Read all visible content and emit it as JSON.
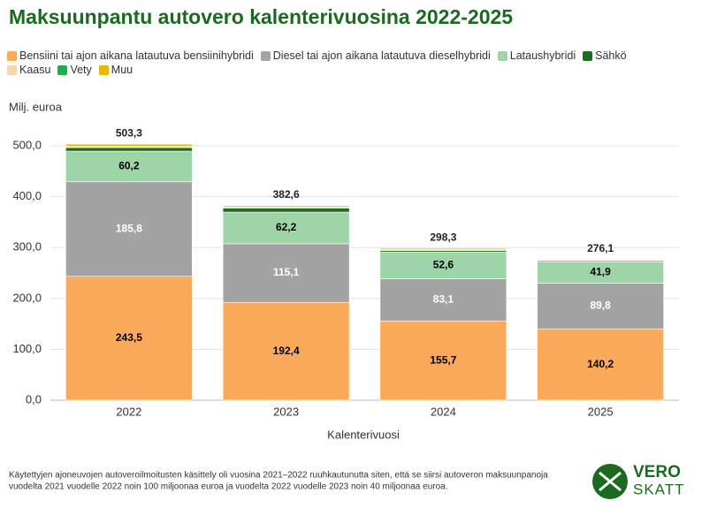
{
  "chart_data": {
    "type": "stacked-bar",
    "title": "Maksuunpantu autovero kalenterivuosina 2022-2025",
    "y_label": "Milj. euroa",
    "x_label": "Kalenterivuosi",
    "categories": [
      "2022",
      "2023",
      "2024",
      "2025"
    ],
    "series": [
      {
        "name": "Bensiini tai ajon aikana latautuva bensiinihybridi",
        "color": "#fba95a",
        "label_color": "#000000",
        "values": [
          243.5,
          192.4,
          155.7,
          140.2
        ],
        "value_labels": [
          "243,5",
          "192,4",
          "155,7",
          "140,2"
        ]
      },
      {
        "name": "Diesel tai ajon aikana latautuva dieselhybridi",
        "color": "#a3a3a3",
        "label_color": "#ffffff",
        "values": [
          185.8,
          115.1,
          83.1,
          89.8
        ],
        "value_labels": [
          "185,8",
          "115,1",
          "83,1",
          "89,8"
        ]
      },
      {
        "name": "Lataushybridi",
        "color": "#9dd4a8",
        "label_color": "#000000",
        "values": [
          60.2,
          62.2,
          52.6,
          41.9
        ],
        "value_labels": [
          "60,2",
          "62,2",
          "52,6",
          "41,9"
        ]
      },
      {
        "name": "Sähkö",
        "color": "#1e6b22",
        "values": [
          7.0,
          8.0,
          3.0,
          2.0
        ]
      },
      {
        "name": "Kaasu",
        "color": "#f6d5b0",
        "values": [
          3.0,
          2.5,
          1.5,
          1.0
        ]
      },
      {
        "name": "Vety",
        "color": "#1fae4c",
        "values": [
          0.1,
          0.1,
          0.1,
          0.1
        ]
      },
      {
        "name": "Muu",
        "color": "#e6b800",
        "values": [
          3.7,
          2.3,
          2.3,
          1.1
        ]
      }
    ],
    "totals": {
      "values": [
        503.3,
        382.6,
        298.3,
        276.1
      ],
      "value_labels": [
        "503,3",
        "382,6",
        "298,3",
        "276,1"
      ]
    },
    "ylim": [
      0,
      540
    ],
    "yticks": [
      {
        "value": 0,
        "label": "0,0"
      },
      {
        "value": 100,
        "label": "100,0"
      },
      {
        "value": 200,
        "label": "200,0"
      },
      {
        "value": 300,
        "label": "300,0"
      },
      {
        "value": 400,
        "label": "400,0"
      },
      {
        "value": 500,
        "label": "500,0"
      }
    ],
    "grid": true
  },
  "footnote": [
    "Käytettyjen ajoneuvojen autoveroilmoitusten käsittely oli vuosina 2021–2022 ruuhkautunutta siten, että se siirsi autoveron maksuunpanoja",
    "vuodelta 2021 vuodelle 2022 noin 100 miljoonaa euroa ja vuodelta 2022 vuodelle 2023 noin 40 miljoonaa euroa."
  ],
  "logo": [
    "VERO",
    "SKATT"
  ]
}
